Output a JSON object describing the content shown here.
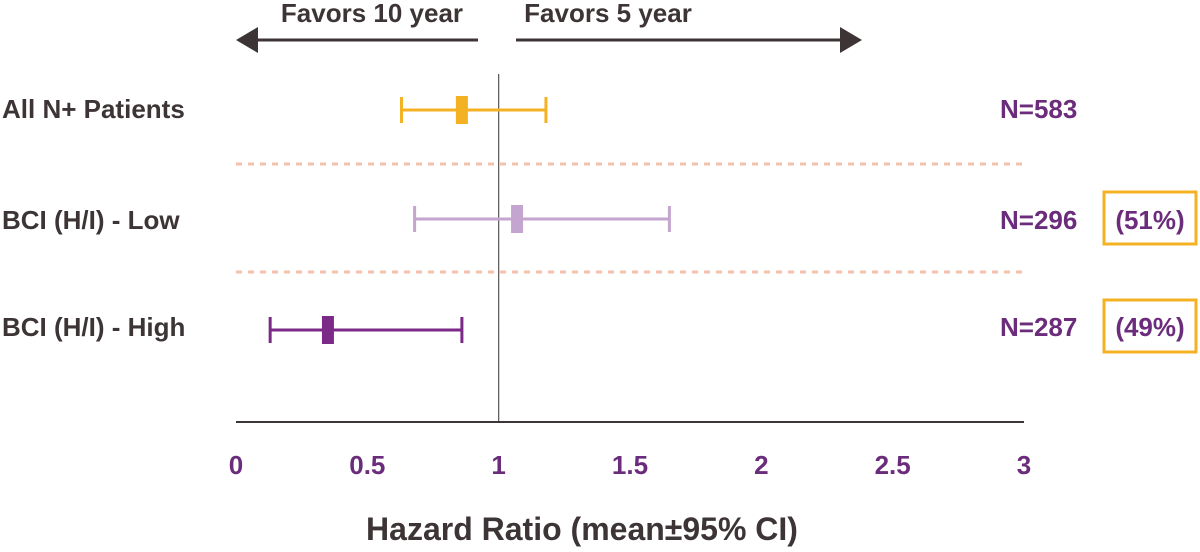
{
  "chart_data": {
    "type": "forest",
    "xlabel": "Hazard Ratio (mean±95% CI)",
    "xlim": [
      0,
      3
    ],
    "xticks": [
      "0",
      "0.5",
      "1",
      "1.5",
      "2",
      "2.5",
      "3"
    ],
    "reference_line": 1,
    "direction_labels": {
      "left": "Favors 10 year",
      "right": "Favors 5 year"
    },
    "rows": [
      {
        "label": "All N+ Patients",
        "mean": 0.86,
        "lower": 0.63,
        "upper": 1.18,
        "n_label": "N=583",
        "pct_label": "",
        "color": "#f4b223"
      },
      {
        "label": "BCI (H/I) - Low",
        "mean": 1.07,
        "lower": 0.68,
        "upper": 1.65,
        "n_label": "N=296",
        "pct_label": "(51%)",
        "color": "#c4a5d0"
      },
      {
        "label": "BCI (H/I) - High",
        "mean": 0.35,
        "lower": 0.13,
        "upper": 0.86,
        "n_label": "N=287",
        "pct_label": "(49%)",
        "color": "#7b2a87"
      }
    ]
  },
  "colors": {
    "text_dark": "#3d3535",
    "accent_purple": "#6b2c7c",
    "highlight_box": "#f4b223",
    "separator": "#f2c2ad"
  }
}
